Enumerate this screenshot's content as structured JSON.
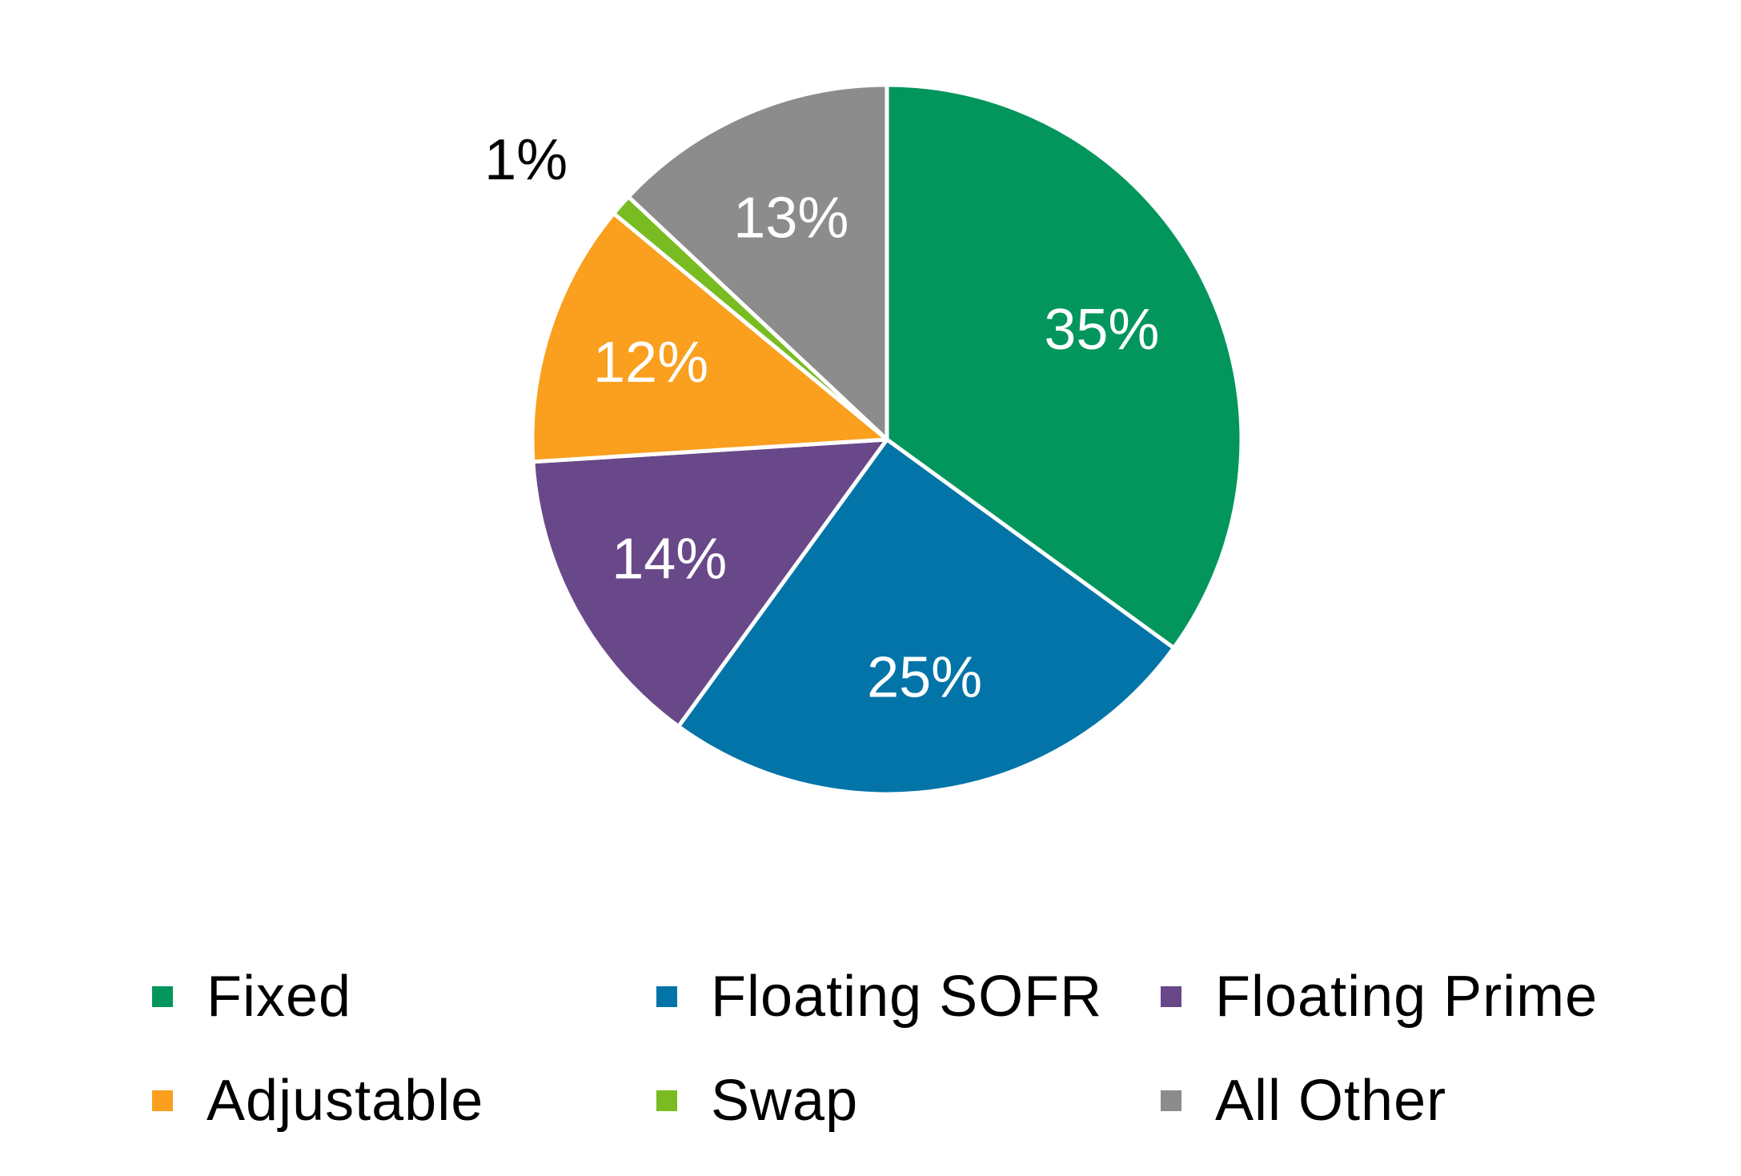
{
  "chart_data": {
    "type": "pie",
    "title": "",
    "start_angle_deg": 0,
    "direction": "clockwise",
    "slice_border_color": "#ffffff",
    "slices": [
      {
        "name": "Fixed",
        "value": 35,
        "label": "35%",
        "color": "#02965D",
        "label_color": "#ffffff"
      },
      {
        "name": "Floating SOFR",
        "value": 25,
        "label": "25%",
        "color": "#0274A8",
        "label_color": "#ffffff"
      },
      {
        "name": "Floating Prime",
        "value": 14,
        "label": "14%",
        "color": "#69488A",
        "label_color": "#ffffff"
      },
      {
        "name": "Adjustable",
        "value": 12,
        "label": "12%",
        "color": "#FA9F1E",
        "label_color": "#ffffff"
      },
      {
        "name": "Swap",
        "value": 1,
        "label": "1%",
        "color": "#78BC22",
        "label_color": "#000000"
      },
      {
        "name": "All Other",
        "value": 13,
        "label": "13%",
        "color": "#8C8C8C",
        "label_color": "#ffffff"
      }
    ],
    "legend": {
      "placement": "bottom",
      "entries": [
        {
          "name": "Fixed",
          "color": "#02965D"
        },
        {
          "name": "Floating SOFR",
          "color": "#0274A8"
        },
        {
          "name": "Floating Prime",
          "color": "#69488A"
        },
        {
          "name": "Adjustable",
          "color": "#FA9F1E"
        },
        {
          "name": "Swap",
          "color": "#78BC22"
        },
        {
          "name": "All Other",
          "color": "#8C8C8C"
        }
      ]
    }
  }
}
